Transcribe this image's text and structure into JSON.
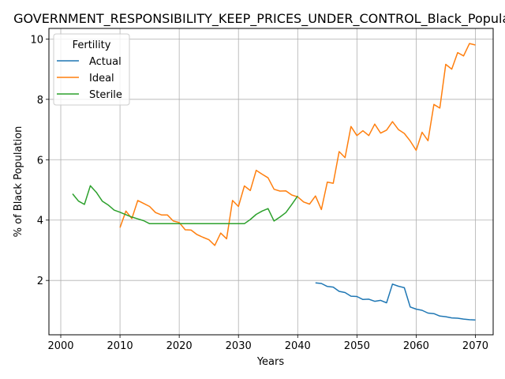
{
  "chart_data": {
    "type": "line",
    "title": "GOVERNMENT_RESPONSIBILITY_KEEP_PRICES_UNDER_CONTROL_Black_Population",
    "xlabel": "Years",
    "ylabel": "% of Black Population",
    "xlim": [
      1998,
      2073
    ],
    "ylim": [
      0.2,
      10.35
    ],
    "xticks": [
      2000,
      2010,
      2020,
      2030,
      2040,
      2050,
      2060,
      2070
    ],
    "yticks": [
      2,
      4,
      6,
      8,
      10
    ],
    "grid": true,
    "legend": {
      "title": "Fertility",
      "placement": "top-left"
    },
    "series": [
      {
        "name": "Actual",
        "color": "#1f77b4",
        "x": [
          2043,
          2044,
          2045,
          2046,
          2047,
          2048,
          2049,
          2050,
          2051,
          2052,
          2053,
          2054,
          2055,
          2056,
          2057,
          2058,
          2059,
          2060,
          2061,
          2062,
          2063,
          2064,
          2065,
          2066,
          2067,
          2068,
          2069,
          2070
        ],
        "y": [
          1.92,
          1.9,
          1.8,
          1.78,
          1.64,
          1.6,
          1.48,
          1.47,
          1.37,
          1.38,
          1.31,
          1.34,
          1.26,
          1.88,
          1.81,
          1.76,
          1.12,
          1.05,
          1.01,
          0.92,
          0.9,
          0.82,
          0.8,
          0.76,
          0.75,
          0.72,
          0.7,
          0.69
        ]
      },
      {
        "name": "Ideal",
        "color": "#ff7f0e",
        "x": [
          2010,
          2011,
          2012,
          2013,
          2014,
          2015,
          2016,
          2017,
          2018,
          2019,
          2020,
          2021,
          2022,
          2023,
          2024,
          2025,
          2026,
          2027,
          2028,
          2029,
          2030,
          2031,
          2032,
          2033,
          2034,
          2035,
          2036,
          2037,
          2038,
          2039,
          2040,
          2041,
          2042,
          2043,
          2044,
          2045,
          2046,
          2047,
          2048,
          2049,
          2050,
          2051,
          2052,
          2053,
          2054,
          2055,
          2056,
          2057,
          2058,
          2059,
          2060,
          2061,
          2062,
          2063,
          2064,
          2065,
          2066,
          2067,
          2068,
          2069,
          2070
        ],
        "y": [
          3.75,
          4.3,
          4.05,
          4.65,
          4.55,
          4.45,
          4.25,
          4.17,
          4.17,
          3.97,
          3.92,
          3.68,
          3.67,
          3.52,
          3.43,
          3.35,
          3.16,
          3.57,
          3.38,
          4.65,
          4.45,
          5.13,
          4.98,
          5.65,
          5.52,
          5.4,
          5.02,
          4.96,
          4.97,
          4.83,
          4.77,
          4.6,
          4.53,
          4.8,
          4.35,
          5.26,
          5.22,
          6.27,
          6.07,
          7.1,
          6.8,
          6.96,
          6.8,
          7.18,
          6.88,
          6.98,
          7.26,
          7.0,
          6.87,
          6.62,
          6.31,
          6.91,
          6.63,
          7.83,
          7.71,
          9.16,
          9.0,
          9.55,
          9.44,
          9.85,
          9.8
        ]
      },
      {
        "name": "Sterile",
        "color": "#2ca02c",
        "x": [
          2002,
          2003,
          2004,
          2005,
          2006,
          2007,
          2008,
          2009,
          2010,
          2011,
          2012,
          2013,
          2014,
          2015,
          2016,
          2017,
          2018,
          2019,
          2020,
          2021,
          2022,
          2023,
          2024,
          2025,
          2026,
          2027,
          2028,
          2029,
          2030,
          2031,
          2032,
          2033,
          2034,
          2035,
          2036,
          2037,
          2038,
          2039,
          2040
        ],
        "y": [
          4.87,
          4.63,
          4.52,
          5.14,
          4.92,
          4.63,
          4.5,
          4.33,
          4.26,
          4.18,
          4.1,
          4.04,
          3.98,
          3.88,
          3.88,
          3.88,
          3.88,
          3.88,
          3.88,
          3.88,
          3.88,
          3.88,
          3.88,
          3.88,
          3.88,
          3.88,
          3.88,
          3.88,
          3.88,
          3.88,
          4.02,
          4.19,
          4.3,
          4.38,
          3.97,
          4.1,
          4.25,
          4.52,
          4.8
        ]
      }
    ]
  }
}
